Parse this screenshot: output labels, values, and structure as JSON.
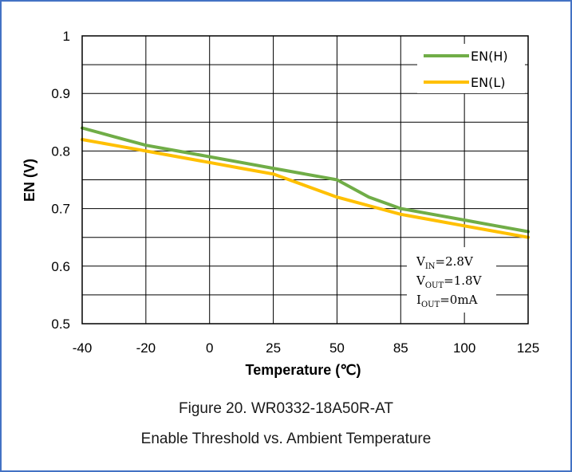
{
  "chart_data": {
    "type": "line",
    "title": "",
    "xlabel": "Temperature (℃)",
    "ylabel": "EN (V)",
    "categories": [
      "-40",
      "-20",
      "0",
      "25",
      "50",
      "85",
      "100",
      "125"
    ],
    "ylim": [
      0.5,
      1
    ],
    "yticks": [
      "0.5",
      "0.6",
      "0.7",
      "0.8",
      "0.9",
      "1"
    ],
    "grid": true,
    "legend_position": "top-right",
    "series": [
      {
        "name": "EN(H)",
        "color": "#70ad47",
        "points": [
          [
            -40,
            0.84
          ],
          [
            -30,
            0.825
          ],
          [
            -20,
            0.81
          ],
          [
            -10,
            0.8
          ],
          [
            0,
            0.79
          ],
          [
            12.5,
            0.78
          ],
          [
            25,
            0.77
          ],
          [
            37.5,
            0.76
          ],
          [
            50,
            0.75
          ],
          [
            67.5,
            0.72
          ],
          [
            85,
            0.7
          ],
          [
            92.5,
            0.69
          ],
          [
            100,
            0.68
          ],
          [
            112.5,
            0.67
          ],
          [
            125,
            0.66
          ]
        ]
      },
      {
        "name": "EN(L)",
        "color": "#ffc000",
        "points": [
          [
            -40,
            0.82
          ],
          [
            -30,
            0.81
          ],
          [
            -20,
            0.8
          ],
          [
            -10,
            0.79
          ],
          [
            0,
            0.78
          ],
          [
            12.5,
            0.77
          ],
          [
            25,
            0.76
          ],
          [
            37.5,
            0.74
          ],
          [
            50,
            0.72
          ],
          [
            67.5,
            0.705
          ],
          [
            85,
            0.69
          ],
          [
            92.5,
            0.68
          ],
          [
            100,
            0.67
          ],
          [
            112.5,
            0.66
          ],
          [
            125,
            0.65
          ]
        ]
      }
    ],
    "annotation": {
      "lines": [
        {
          "base": "V",
          "sub": "IN",
          "value": "=2.8V"
        },
        {
          "base": "V",
          "sub": "OUT",
          "value": "=1.8V"
        },
        {
          "base": "I",
          "sub": "OUT",
          "value": "=0mA"
        }
      ]
    }
  },
  "caption": {
    "line1": "Figure 20. WR0332-18A50R-AT",
    "line2": "Enable Threshold vs. Ambient Temperature"
  }
}
